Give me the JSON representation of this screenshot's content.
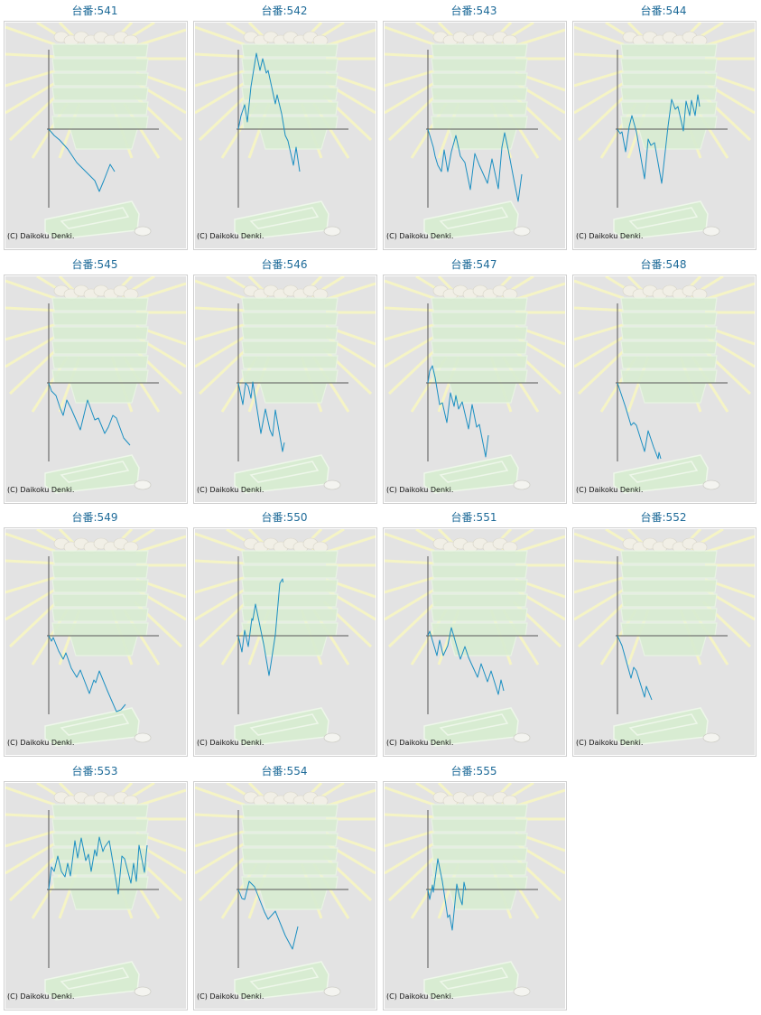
{
  "copyright": "(C) Daikoku Denki.",
  "colors": {
    "line": "#1b8fc2",
    "axis": "#555555",
    "title": "#1d6a98",
    "background": "#e3e3e3"
  },
  "chart_data": [
    {
      "type": "line",
      "title": "台番:541",
      "xlim": [
        0,
        121
      ],
      "ylim": [
        -88,
        88
      ],
      "x": [
        0,
        6,
        12,
        21,
        31,
        41,
        51,
        56,
        61,
        68,
        73
      ],
      "y": [
        0,
        -7,
        -12,
        -22,
        -37,
        -47,
        -57,
        -69,
        -57,
        -39,
        -47
      ]
    },
    {
      "type": "line",
      "title": "台番:542",
      "xlim": [
        0,
        121
      ],
      "ylim": [
        -88,
        88
      ],
      "x": [
        0,
        3,
        7,
        10,
        14,
        20,
        24,
        27,
        31,
        33,
        41,
        43,
        48,
        52,
        55,
        61,
        64,
        68
      ],
      "y": [
        0,
        15,
        27,
        8,
        47,
        84,
        65,
        78,
        62,
        65,
        28,
        38,
        17,
        -7,
        -13,
        -40,
        -20,
        -47
      ]
    },
    {
      "type": "line",
      "title": "台番:543",
      "xlim": [
        0,
        121
      ],
      "ylim": [
        -88,
        88
      ],
      "x": [
        0,
        6,
        8,
        11,
        15,
        18,
        22,
        26,
        31,
        36,
        41,
        47,
        52,
        57,
        66,
        71,
        78,
        82,
        85,
        89,
        96,
        100,
        104
      ],
      "y": [
        0,
        -20,
        -30,
        -40,
        -47,
        -23,
        -47,
        -25,
        -7,
        -30,
        -37,
        -67,
        -27,
        -40,
        -60,
        -33,
        -66,
        -20,
        -4,
        -23,
        -60,
        -80,
        -50
      ]
    },
    {
      "type": "line",
      "title": "台番:544",
      "xlim": [
        0,
        121
      ],
      "ylim": [
        -88,
        88
      ],
      "x": [
        0,
        3,
        5,
        9,
        13,
        16,
        21,
        30,
        34,
        37,
        41,
        49,
        56,
        60,
        64,
        67,
        73,
        76,
        80,
        82,
        86,
        89,
        91
      ],
      "y": [
        0,
        -5,
        -3,
        -25,
        3,
        15,
        -3,
        -55,
        -11,
        -18,
        -15,
        -60,
        3,
        33,
        22,
        25,
        -2,
        31,
        15,
        32,
        15,
        38,
        25
      ]
    },
    {
      "type": "line",
      "title": "台番:545",
      "xlim": [
        0,
        121
      ],
      "ylim": [
        -88,
        88
      ],
      "x": [
        0,
        3,
        8,
        13,
        16,
        20,
        25,
        35,
        43,
        51,
        55,
        62,
        66,
        71,
        75,
        83,
        90
      ],
      "y": [
        0,
        -9,
        -14,
        -29,
        -36,
        -19,
        -29,
        -52,
        -19,
        -41,
        -39,
        -56,
        -49,
        -36,
        -39,
        -61,
        -69
      ]
    },
    {
      "type": "line",
      "title": "台番:546",
      "xlim": [
        0,
        121
      ],
      "ylim": [
        -88,
        88
      ],
      "x": [
        0,
        5,
        8,
        11,
        14,
        16,
        25,
        30,
        35,
        38,
        41,
        49,
        51
      ],
      "y": [
        0,
        -24,
        0,
        -4,
        -17,
        1,
        -56,
        -29,
        -52,
        -59,
        -30,
        -76,
        -66
      ]
    },
    {
      "type": "line",
      "title": "台番:547",
      "xlim": [
        0,
        121
      ],
      "ylim": [
        -88,
        88
      ],
      "x": [
        0,
        2,
        5,
        8,
        13,
        16,
        21,
        25,
        29,
        31,
        34,
        38,
        45,
        49,
        54,
        57,
        64,
        67
      ],
      "y": [
        0,
        13,
        19,
        6,
        -24,
        -22,
        -44,
        -11,
        -26,
        -14,
        -29,
        -21,
        -51,
        -24,
        -49,
        -46,
        -82,
        -58
      ]
    },
    {
      "type": "line",
      "title": "台番:548",
      "xlim": [
        0,
        121
      ],
      "ylim": [
        -88,
        88
      ],
      "x": [
        0,
        9,
        15,
        18,
        21,
        30,
        34,
        40,
        45,
        46,
        48
      ],
      "y": [
        0,
        -27,
        -47,
        -44,
        -47,
        -76,
        -53,
        -71,
        -84,
        -77,
        -84
      ]
    },
    {
      "type": "line",
      "title": "台番:549",
      "xlim": [
        0,
        121
      ],
      "ylim": [
        -88,
        88
      ],
      "x": [
        0,
        3,
        5,
        11,
        16,
        19,
        25,
        31,
        35,
        45,
        50,
        52,
        56,
        65,
        75,
        80,
        85
      ],
      "y": [
        0,
        -6,
        -2,
        -17,
        -26,
        -19,
        -36,
        -46,
        -38,
        -64,
        -49,
        -52,
        -39,
        -61,
        -84,
        -82,
        -76
      ]
    },
    {
      "type": "line",
      "title": "台番:550",
      "xlim": [
        0,
        121
      ],
      "ylim": [
        -88,
        88
      ],
      "x": [
        0,
        4,
        7,
        11,
        15,
        16,
        19,
        28,
        34,
        36,
        41,
        46,
        49,
        49.5
      ],
      "y": [
        0,
        -18,
        6,
        -12,
        19,
        17,
        35,
        -9,
        -44,
        -32,
        1,
        58,
        63,
        59
      ]
    },
    {
      "type": "line",
      "title": "台番:551",
      "xlim": [
        0,
        121
      ],
      "ylim": [
        -88,
        88
      ],
      "x": [
        0,
        2,
        10,
        13,
        17,
        22,
        26,
        36,
        41,
        45,
        55,
        59,
        66,
        70,
        78,
        81,
        84
      ],
      "y": [
        0,
        5,
        -22,
        -5,
        -22,
        -11,
        9,
        -26,
        -12,
        -24,
        -46,
        -31,
        -51,
        -39,
        -65,
        -49,
        -61
      ]
    },
    {
      "type": "line",
      "title": "台番:552",
      "xlim": [
        0,
        121
      ],
      "ylim": [
        -88,
        88
      ],
      "x": [
        0,
        5,
        15,
        18,
        21,
        30,
        32,
        38
      ],
      "y": [
        0,
        -11,
        -47,
        -35,
        -39,
        -68,
        -56,
        -71
      ]
    },
    {
      "type": "line",
      "title": "台番:553",
      "xlim": [
        0,
        121
      ],
      "ylim": [
        -88,
        88
      ],
      "x": [
        0,
        3,
        6,
        10,
        14,
        18,
        21,
        24,
        29,
        32,
        36,
        41,
        44,
        47,
        51,
        53,
        56,
        60,
        62,
        67,
        77,
        81,
        84,
        91,
        94,
        97,
        100,
        106,
        109
      ],
      "y": [
        0,
        25,
        20,
        37,
        20,
        14,
        29,
        15,
        54,
        35,
        57,
        32,
        39,
        20,
        44,
        37,
        58,
        42,
        47,
        54,
        -5,
        37,
        34,
        7,
        29,
        9,
        49,
        19,
        49
      ]
    },
    {
      "type": "line",
      "title": "台番:554",
      "xlim": [
        0,
        121
      ],
      "ylim": [
        -88,
        88
      ],
      "x": [
        0,
        4,
        7,
        12,
        18,
        29,
        33,
        41,
        52,
        60,
        66
      ],
      "y": [
        0,
        -10,
        -11,
        9,
        3,
        -25,
        -33,
        -24,
        -51,
        -66,
        -41
      ]
    },
    {
      "type": "line",
      "title": "台番:555",
      "xlim": [
        0,
        121
      ],
      "ylim": [
        -88,
        88
      ],
      "x": [
        0,
        2,
        5,
        6,
        11,
        16,
        22,
        24,
        27,
        32,
        35,
        38,
        40,
        42
      ],
      "y": [
        0,
        -11,
        5,
        -3,
        34,
        9,
        -31,
        -28,
        -45,
        6,
        -8,
        -17,
        8,
        -1
      ]
    }
  ]
}
